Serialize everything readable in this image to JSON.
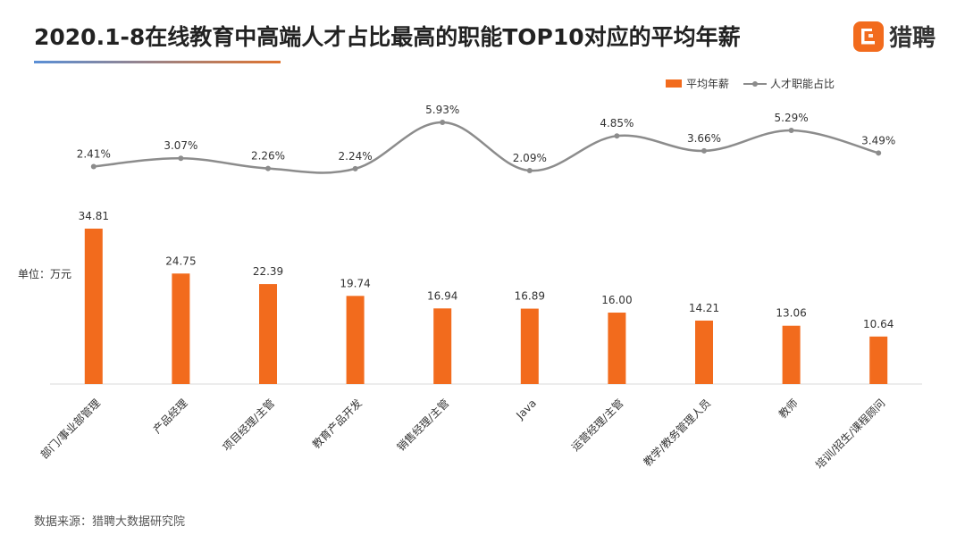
{
  "title": "2020.1-8在线教育中高端人才占比最高的职能TOP10对应的平均年薪",
  "brand": {
    "name": "猎聘",
    "accent": "#f26b1d"
  },
  "source": "数据来源：猎聘大数据研究院",
  "chart_data": {
    "type": "bar",
    "categories": [
      "部门/事业部管理",
      "产品经理",
      "项目经理/主管",
      "教育产品开发",
      "销售经理/主管",
      "Java",
      "运营经理/主管",
      "教学/教务管理人员",
      "教师",
      "培训/招生/课程顾问"
    ],
    "series": [
      {
        "name": "平均年薪",
        "type": "bar",
        "values": [
          34.81,
          24.75,
          22.39,
          19.74,
          16.94,
          16.89,
          16.0,
          14.21,
          13.06,
          10.64
        ],
        "labels": [
          "34.81",
          "24.75",
          "22.39",
          "19.74",
          "16.94",
          "16.89",
          "16.00",
          "14.21",
          "13.06",
          "10.64"
        ],
        "color": "#f26b1d"
      },
      {
        "name": "人才职能占比",
        "type": "line",
        "values": [
          2.41,
          3.07,
          2.26,
          2.24,
          5.93,
          2.09,
          4.85,
          3.66,
          5.29,
          3.49
        ],
        "labels": [
          "2.41%",
          "3.07%",
          "2.26%",
          "2.24%",
          "5.93%",
          "2.09%",
          "4.85%",
          "3.66%",
          "5.29%",
          "3.49%"
        ],
        "color": "#8c8c8c",
        "smooth": true
      }
    ],
    "unit_label": "单位：万元",
    "legend": "top-right",
    "grid": false
  }
}
